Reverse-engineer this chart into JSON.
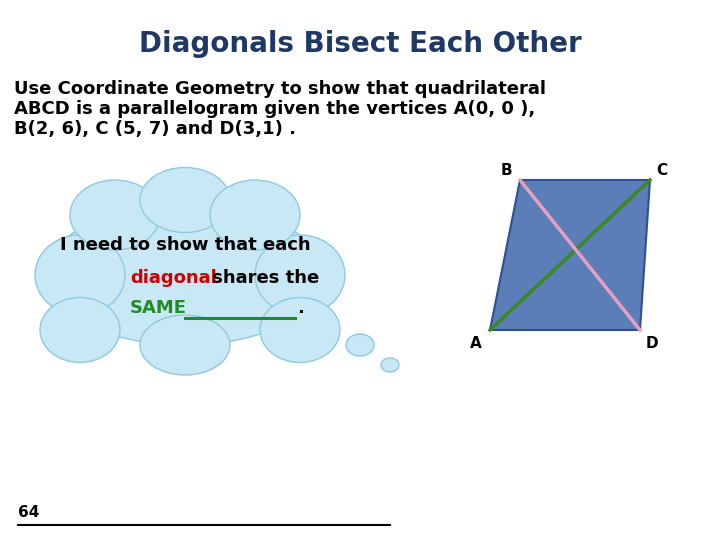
{
  "title": "Diagonals Bisect Each Other",
  "title_color": "#1F3864",
  "title_fontsize": 20,
  "body_text_line1": "Use Coordinate Geometry to show that quadrilateral",
  "body_text_line2": "ABCD is a parallelogram given the vertices A(0, 0 ),",
  "body_text_line3": "B(2, 6), C (5, 7) and D(3,1) .",
  "body_fontsize": 13,
  "body_color": "#000000",
  "thought_line1": "I need to show that each",
  "thought_line2_red": "diagonal",
  "thought_line2_black": " shares the",
  "thought_line3_green": "SAME",
  "cloud_fill": "#C8E8F5",
  "cloud_edge": "#90C8E0",
  "diagonal_red": "#CC0000",
  "same_green": "#228B22",
  "underline_green": "#228B22",
  "quad_fill": "#5B7DB8",
  "quad_edge": "#2F4F8F",
  "diag_green": "#3A8A20",
  "diag_pink": "#E8A0C0",
  "vertex_label_color": "#000000",
  "page_number": "64",
  "background_color": "#ffffff"
}
